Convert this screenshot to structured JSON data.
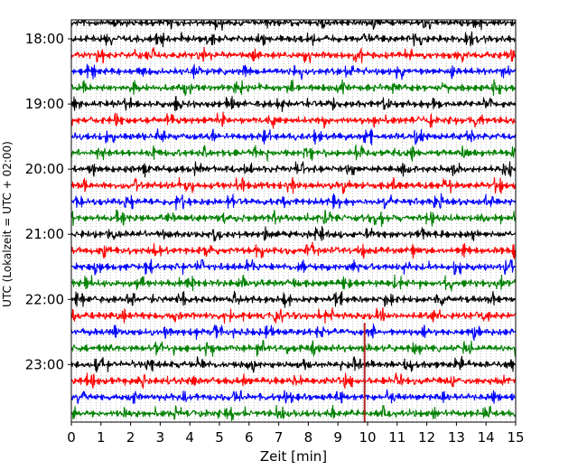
{
  "chart_data": {
    "type": "line",
    "title": "",
    "xlabel": "Zeit  [min]",
    "ylabel": "UTC (Lokalzeit = UTC + 02:00)",
    "xlim": [
      0,
      15
    ],
    "x_ticks": [
      "0",
      "1",
      "2",
      "3",
      "4",
      "5",
      "6",
      "7",
      "8",
      "9",
      "10",
      "11",
      "12",
      "13",
      "14",
      "15"
    ],
    "y_ticks": [
      "18:00",
      "19:00",
      "20:00",
      "21:00",
      "22:00",
      "23:00"
    ],
    "trace_interval_min": 15,
    "series": [
      {
        "start": "17:45",
        "color": "#000000"
      },
      {
        "start": "18:00",
        "color": "#000000"
      },
      {
        "start": "18:15",
        "color": "#ff0000"
      },
      {
        "start": "18:30",
        "color": "#0000ff"
      },
      {
        "start": "18:45",
        "color": "#008000"
      },
      {
        "start": "19:00",
        "color": "#000000"
      },
      {
        "start": "19:15",
        "color": "#ff0000"
      },
      {
        "start": "19:30",
        "color": "#0000ff"
      },
      {
        "start": "19:45",
        "color": "#008000"
      },
      {
        "start": "20:00",
        "color": "#000000"
      },
      {
        "start": "20:15",
        "color": "#ff0000"
      },
      {
        "start": "20:30",
        "color": "#0000ff"
      },
      {
        "start": "20:45",
        "color": "#008000"
      },
      {
        "start": "21:00",
        "color": "#000000"
      },
      {
        "start": "21:15",
        "color": "#ff0000"
      },
      {
        "start": "21:30",
        "color": "#0000ff"
      },
      {
        "start": "21:45",
        "color": "#008000"
      },
      {
        "start": "22:00",
        "color": "#000000"
      },
      {
        "start": "22:15",
        "color": "#ff0000"
      },
      {
        "start": "22:30",
        "color": "#0000ff"
      },
      {
        "start": "22:45",
        "color": "#008000"
      },
      {
        "start": "23:00",
        "color": "#000000"
      },
      {
        "start": "23:15",
        "color": "#ff0000"
      },
      {
        "start": "23:30",
        "color": "#0000ff"
      },
      {
        "start": "23:45",
        "color": "#008000"
      }
    ],
    "event_marker": {
      "x": 9.9,
      "color": "#b22222"
    },
    "grid": true
  }
}
